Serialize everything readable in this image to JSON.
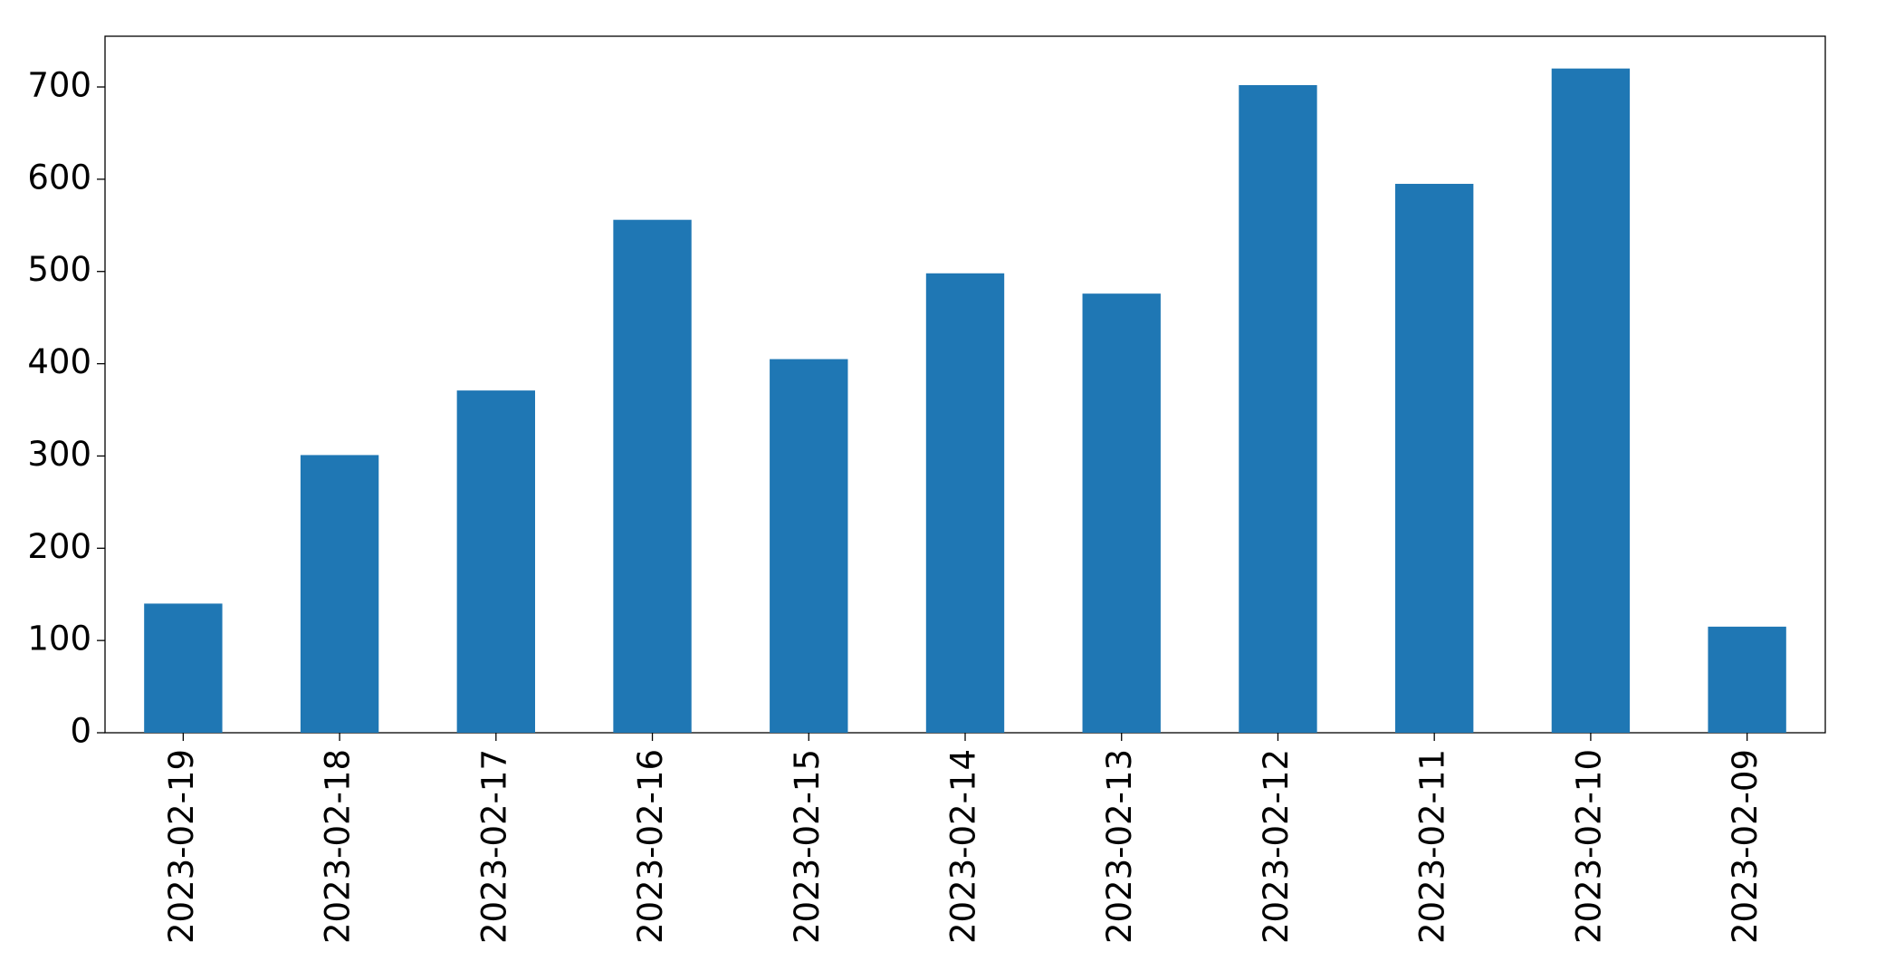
{
  "chart_data": {
    "type": "bar",
    "categories": [
      "2023-02-19",
      "2023-02-18",
      "2023-02-17",
      "2023-02-16",
      "2023-02-15",
      "2023-02-14",
      "2023-02-13",
      "2023-02-12",
      "2023-02-11",
      "2023-02-10",
      "2023-02-09"
    ],
    "values": [
      140,
      301,
      371,
      556,
      405,
      498,
      476,
      702,
      595,
      720,
      115
    ],
    "color": "#1f77b4",
    "ylim": [
      0,
      755
    ],
    "yticks": [
      0,
      100,
      200,
      300,
      400,
      500,
      600,
      700
    ],
    "grid": false
  }
}
